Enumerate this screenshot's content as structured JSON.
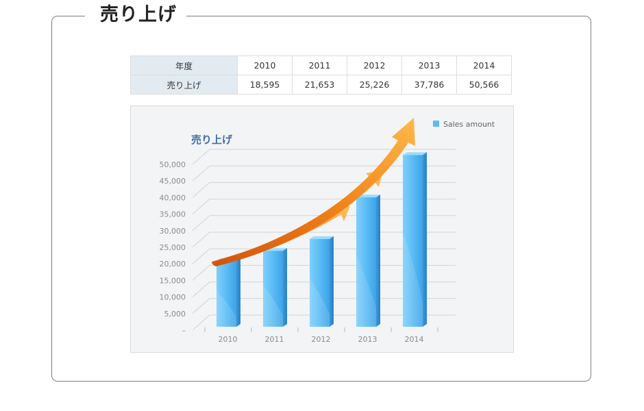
{
  "page": {
    "title": "売り上げ"
  },
  "table": {
    "header_label": "年度",
    "row_label": "売り上げ",
    "years": [
      "2010",
      "2011",
      "2012",
      "2013",
      "2014"
    ],
    "values": [
      "18,595",
      "21,653",
      "25,226",
      "37,786",
      "50,566"
    ]
  },
  "chart_data": {
    "type": "bar",
    "title": "売り上げ",
    "categories": [
      "2010",
      "2011",
      "2012",
      "2013",
      "2014"
    ],
    "series": [
      {
        "name": "Sales amount",
        "values": [
          18595,
          21653,
          25226,
          37786,
          50566
        ]
      }
    ],
    "ylim": [
      0,
      50000
    ],
    "yticks": [
      "–",
      "5,000",
      "10,000",
      "15,000",
      "20,000",
      "25,000",
      "30,000",
      "35,000",
      "40,000",
      "45,000",
      "50,000"
    ],
    "grid": true,
    "legend": "top-right",
    "bar_color": "#5bbcf5",
    "arrow_color": "#f39a22"
  }
}
